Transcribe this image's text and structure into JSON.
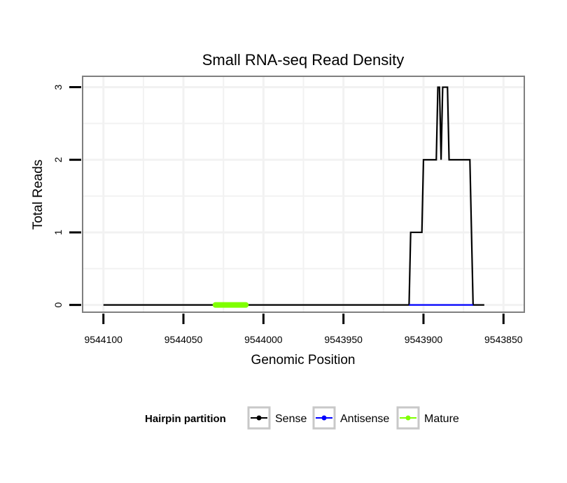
{
  "chart_data": {
    "type": "line",
    "title": "Small RNA-seq Read Density",
    "xlabel": "Genomic Position",
    "ylabel": "Total Reads",
    "x_reversed": true,
    "xlim": [
      9544113,
      9543837
    ],
    "ylim": [
      -0.1,
      3.15
    ],
    "x_ticks": [
      9544100,
      9544050,
      9544000,
      9543950,
      9543900,
      9543850
    ],
    "x_tick_labels": [
      "9544100",
      "9544050",
      "9544000",
      "9543950",
      "9543900",
      "9543850"
    ],
    "y_ticks": [
      0,
      1,
      2,
      3
    ],
    "y_tick_labels": [
      "0",
      "1",
      "2",
      "3"
    ],
    "grid": true,
    "series": [
      {
        "name": "Sense",
        "color": "#000000",
        "x": [
          9544100,
          9543909,
          9543908,
          9543901,
          9543900,
          9543892,
          9543891,
          9543890,
          9543889,
          9543888,
          9543887,
          9543886,
          9543885,
          9543884,
          9543883,
          9543882,
          9543881,
          9543871,
          9543869,
          9543862
        ],
        "y": [
          0,
          0,
          1,
          1,
          2,
          2,
          3,
          3,
          2,
          3,
          3,
          3,
          3,
          2,
          2,
          2,
          2,
          2,
          0,
          0
        ]
      },
      {
        "name": "Antisense",
        "color": "#0000ff",
        "x": [
          9543909,
          9543869
        ],
        "y": [
          0,
          0
        ]
      },
      {
        "name": "Mature",
        "color": "#7fff00",
        "x": [
          9544030,
          9544011
        ],
        "y": [
          0,
          0
        ]
      }
    ],
    "legend": {
      "title": "Hairpin partition",
      "position": "bottom",
      "entries": [
        {
          "label": "Sense",
          "color": "#000000"
        },
        {
          "label": "Antisense",
          "color": "#0000ff"
        },
        {
          "label": "Mature",
          "color": "#7fff00"
        }
      ]
    }
  }
}
